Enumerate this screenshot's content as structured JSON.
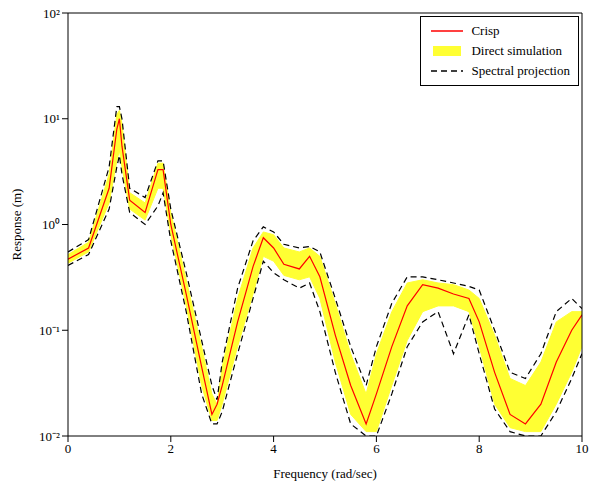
{
  "chart_data": {
    "type": "line",
    "x_label": "Frequency (rad/sec)",
    "y_label": "Response (m)",
    "log": "y",
    "grid": false,
    "legend": "northeast",
    "x": [
      0,
      0.4,
      0.8,
      0.95,
      1.0,
      1.05,
      1.2,
      1.5,
      1.75,
      1.85,
      2.0,
      2.3,
      2.6,
      2.8,
      2.9,
      3.0,
      3.3,
      3.6,
      3.8,
      4.0,
      4.2,
      4.5,
      4.7,
      4.9,
      5.2,
      5.5,
      5.8,
      6.0,
      6.3,
      6.6,
      6.9,
      7.2,
      7.5,
      7.8,
      8.0,
      8.3,
      8.6,
      8.9,
      9.2,
      9.5,
      9.8,
      10
    ],
    "xlim": [
      0,
      10
    ],
    "xticks": [
      0,
      2,
      4,
      6,
      8,
      10
    ],
    "ylim": [
      0.01,
      100
    ],
    "yticks": [
      {
        "value": 0.01,
        "label": "10⁻²"
      },
      {
        "value": 0.1,
        "label": "10⁻¹"
      },
      {
        "value": 1,
        "label": "10⁰"
      },
      {
        "value": 10,
        "label": "10¹"
      },
      {
        "value": 100,
        "label": "10²"
      }
    ],
    "series": [
      {
        "name": "Crisp",
        "type": "line",
        "color": "#ff0000",
        "line_style": "solid",
        "values": [
          0.47,
          0.6,
          2.2,
          8,
          10,
          5.5,
          1.7,
          1.3,
          3.3,
          3.3,
          1.0,
          0.22,
          0.045,
          0.016,
          0.02,
          0.03,
          0.12,
          0.4,
          0.75,
          0.6,
          0.42,
          0.38,
          0.5,
          0.32,
          0.09,
          0.03,
          0.013,
          0.025,
          0.07,
          0.17,
          0.27,
          0.25,
          0.22,
          0.2,
          0.12,
          0.04,
          0.016,
          0.013,
          0.02,
          0.05,
          0.1,
          0.14
        ]
      },
      {
        "name": "Direct simulation",
        "type": "area",
        "color": "#ffff33",
        "values": [
          [
            0.43,
            0.52
          ],
          [
            0.55,
            0.68
          ],
          [
            1.6,
            3
          ],
          [
            4,
            11
          ],
          [
            5,
            12
          ],
          [
            3.5,
            9
          ],
          [
            1.4,
            2
          ],
          [
            1.1,
            1.6
          ],
          [
            2.2,
            3.8
          ],
          [
            2.2,
            3.8
          ],
          [
            0.8,
            1.3
          ],
          [
            0.17,
            0.3
          ],
          [
            0.03,
            0.07
          ],
          [
            0.014,
            0.025
          ],
          [
            0.014,
            0.02
          ],
          [
            0.02,
            0.045
          ],
          [
            0.07,
            0.2
          ],
          [
            0.22,
            0.6
          ],
          [
            0.5,
            0.85
          ],
          [
            0.45,
            0.8
          ],
          [
            0.33,
            0.6
          ],
          [
            0.3,
            0.55
          ],
          [
            0.32,
            0.6
          ],
          [
            0.2,
            0.5
          ],
          [
            0.05,
            0.18
          ],
          [
            0.016,
            0.06
          ],
          [
            0.011,
            0.025
          ],
          [
            0.011,
            0.06
          ],
          [
            0.03,
            0.15
          ],
          [
            0.08,
            0.28
          ],
          [
            0.15,
            0.3
          ],
          [
            0.17,
            0.28
          ],
          [
            0.17,
            0.27
          ],
          [
            0.15,
            0.24
          ],
          [
            0.07,
            0.2
          ],
          [
            0.02,
            0.09
          ],
          [
            0.012,
            0.035
          ],
          [
            0.011,
            0.03
          ],
          [
            0.011,
            0.05
          ],
          [
            0.02,
            0.12
          ],
          [
            0.04,
            0.15
          ],
          [
            0.07,
            0.15
          ]
        ]
      },
      {
        "name": "Spectral projection",
        "type": "line",
        "color": "#000000",
        "line_style": "dashed",
        "values": [
          [
            0.41,
            0.55
          ],
          [
            0.52,
            0.72
          ],
          [
            1.4,
            3.5
          ],
          [
            3.5,
            13
          ],
          [
            4.5,
            13
          ],
          [
            3,
            10
          ],
          [
            1.3,
            2.2
          ],
          [
            1.0,
            1.8
          ],
          [
            1.5,
            4
          ],
          [
            2.0,
            4
          ],
          [
            0.7,
            1.4
          ],
          [
            0.15,
            0.35
          ],
          [
            0.025,
            0.08
          ],
          [
            0.013,
            0.03
          ],
          [
            0.013,
            0.022
          ],
          [
            0.017,
            0.05
          ],
          [
            0.06,
            0.25
          ],
          [
            0.2,
            0.7
          ],
          [
            0.45,
            0.95
          ],
          [
            0.35,
            0.85
          ],
          [
            0.3,
            0.65
          ],
          [
            0.25,
            0.6
          ],
          [
            0.28,
            0.62
          ],
          [
            0.15,
            0.55
          ],
          [
            0.04,
            0.2
          ],
          [
            0.013,
            0.07
          ],
          [
            0.01,
            0.03
          ],
          [
            0.01,
            0.07
          ],
          [
            0.025,
            0.18
          ],
          [
            0.07,
            0.32
          ],
          [
            0.12,
            0.32
          ],
          [
            0.15,
            0.3
          ],
          [
            0.06,
            0.28
          ],
          [
            0.14,
            0.26
          ],
          [
            0.06,
            0.24
          ],
          [
            0.018,
            0.1
          ],
          [
            0.011,
            0.04
          ],
          [
            0.01,
            0.035
          ],
          [
            0.01,
            0.06
          ],
          [
            0.017,
            0.15
          ],
          [
            0.035,
            0.2
          ],
          [
            0.06,
            0.16
          ]
        ]
      }
    ]
  }
}
